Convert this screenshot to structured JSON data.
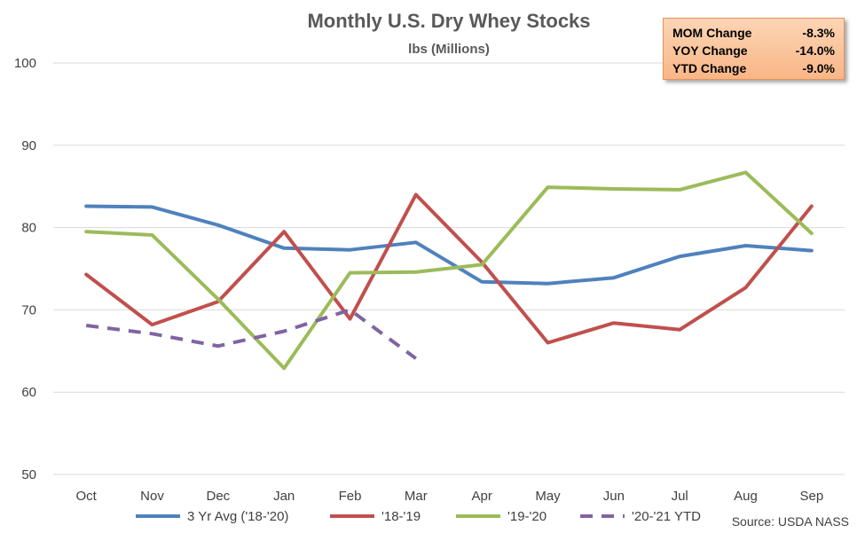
{
  "stats": [
    {
      "label": "MOM Change",
      "value": "-8.3%"
    },
    {
      "label": "YOY Change",
      "value": "-14.0%"
    },
    {
      "label": "YTD Change",
      "value": "-9.0%"
    }
  ],
  "source": "Source: USDA NASS",
  "chart_data": {
    "type": "line",
    "title": "Monthly U.S. Dry Whey Stocks",
    "subtitle": "lbs (Millions)",
    "xlabel": "",
    "ylabel": "",
    "categories": [
      "Oct",
      "Nov",
      "Dec",
      "Jan",
      "Feb",
      "Mar",
      "Apr",
      "May",
      "Jun",
      "Jul",
      "Aug",
      "Sep"
    ],
    "ylim": [
      50,
      100
    ],
    "yticks": [
      50,
      60,
      70,
      80,
      90,
      100
    ],
    "grid": true,
    "legend_position": "bottom",
    "series": [
      {
        "name": "3 Yr Avg ('18-'20)",
        "color": "#4f81bd",
        "dash": false,
        "values": [
          82.6,
          82.5,
          80.3,
          77.5,
          77.3,
          78.2,
          73.4,
          73.2,
          73.9,
          76.5,
          77.8,
          77.2
        ]
      },
      {
        "name": "'18-'19",
        "color": "#c0504d",
        "dash": false,
        "values": [
          74.3,
          68.2,
          71.0,
          79.5,
          68.9,
          84.0,
          75.8,
          66.0,
          68.4,
          67.6,
          72.7,
          82.6
        ]
      },
      {
        "name": "'19-'20",
        "color": "#9bbb59",
        "dash": false,
        "values": [
          79.5,
          79.1,
          71.3,
          62.9,
          74.5,
          74.6,
          75.5,
          84.9,
          84.7,
          84.6,
          86.7,
          79.3
        ]
      },
      {
        "name": "'20-'21 YTD",
        "color": "#8064a2",
        "dash": true,
        "values": [
          68.1,
          67.1,
          65.6,
          67.4,
          70.0,
          64.1,
          null,
          null,
          null,
          null,
          null,
          null
        ]
      }
    ]
  }
}
